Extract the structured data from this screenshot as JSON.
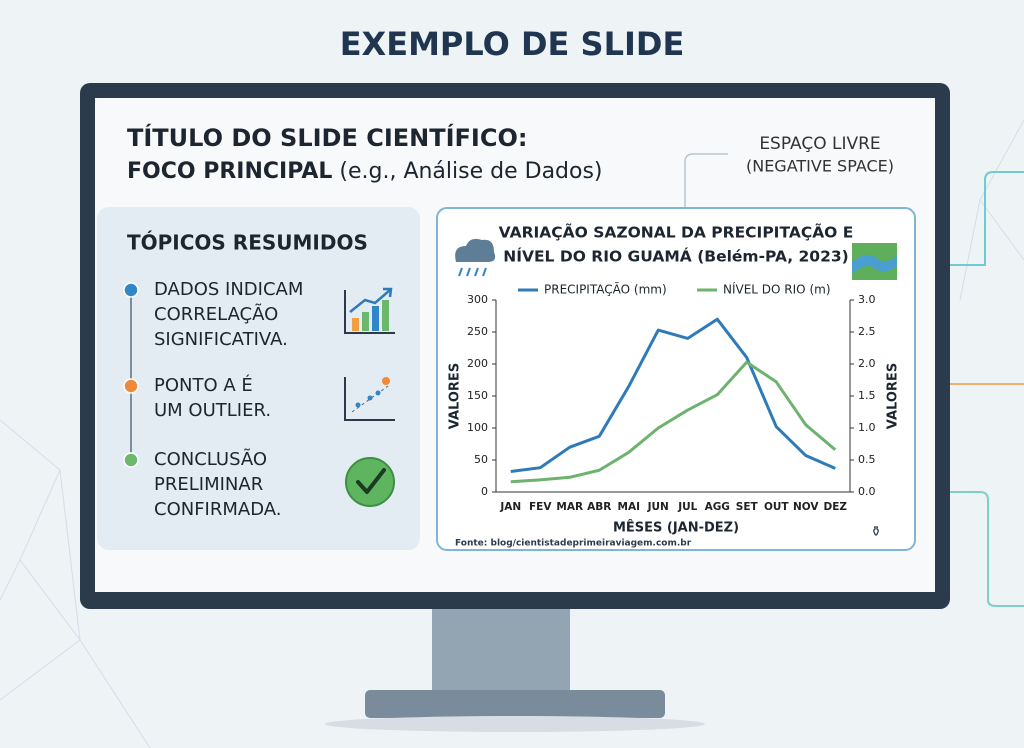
{
  "header": {
    "title": "EXEMPLO DE SLIDE"
  },
  "slide": {
    "title_line1": "TÍTULO DO SLIDE CIENTÍFICO:",
    "title_line2_bold": "FOCO PRINCIPAL",
    "title_line2_rest": " (e.g., Análise de Dados)",
    "negative_space": [
      "ESPAÇO LIVRE",
      "(NEGATIVE SPACE)"
    ],
    "topics_heading": "TÓPICOS RESUMIDOS",
    "topics": [
      [
        "DADOS INDICAM",
        "CORRELAÇÃO",
        "SIGNIFICATIVA."
      ],
      [
        "PONTO A É",
        "UM OUTLIER."
      ],
      [
        "CONCLUSÃO",
        "PRELIMINAR",
        "CONFIRMADA."
      ]
    ],
    "source": "Fonte: blog/cientistadeprimeiraviagem.com.br"
  },
  "chart_data": {
    "type": "line",
    "title": [
      "VARIAÇÃO SAZONAL DA PRECIPITAÇÃO E",
      "NÍVEL DO RIO GUAMÁ (Belém-PA, 2023)"
    ],
    "x_label": "MÊSES (JAN-DEZ)",
    "y_label": "VALORES",
    "y2_label": "VALORES",
    "categories": [
      "JAN",
      "FEV",
      "MAR",
      "ABR",
      "MAI",
      "JUN",
      "JUL",
      "AGG",
      "SET",
      "OUT",
      "NOV",
      "DEZ"
    ],
    "series": [
      {
        "name": "PRECIPITAÇÃO (mm)",
        "color": "#2f7ab8",
        "values": [
          32,
          38,
          70,
          87,
          165,
          253,
          240,
          270,
          210,
          102,
          57,
          37
        ]
      },
      {
        "name": "NÍVEL DO RIO (m)",
        "color": "#6db36f",
        "axis": "y2",
        "values": [
          0.16,
          0.19,
          0.23,
          0.34,
          0.62,
          1.0,
          1.28,
          1.52,
          2.03,
          1.72,
          1.05,
          0.66
        ]
      }
    ],
    "ylim": [
      0,
      300
    ],
    "yticks": [
      0,
      50,
      100,
      150,
      200,
      250,
      300
    ],
    "y2lim": [
      0,
      3
    ],
    "y2ticks": [
      {
        "value": 0,
        "label": "0.0"
      },
      0.5,
      {
        "value": 1,
        "label": "1.0"
      },
      1.5,
      {
        "value": 2,
        "label": "2.0"
      },
      2.5,
      {
        "value": 3,
        "label": "3.0"
      }
    ],
    "grid": false,
    "legend": "top"
  }
}
